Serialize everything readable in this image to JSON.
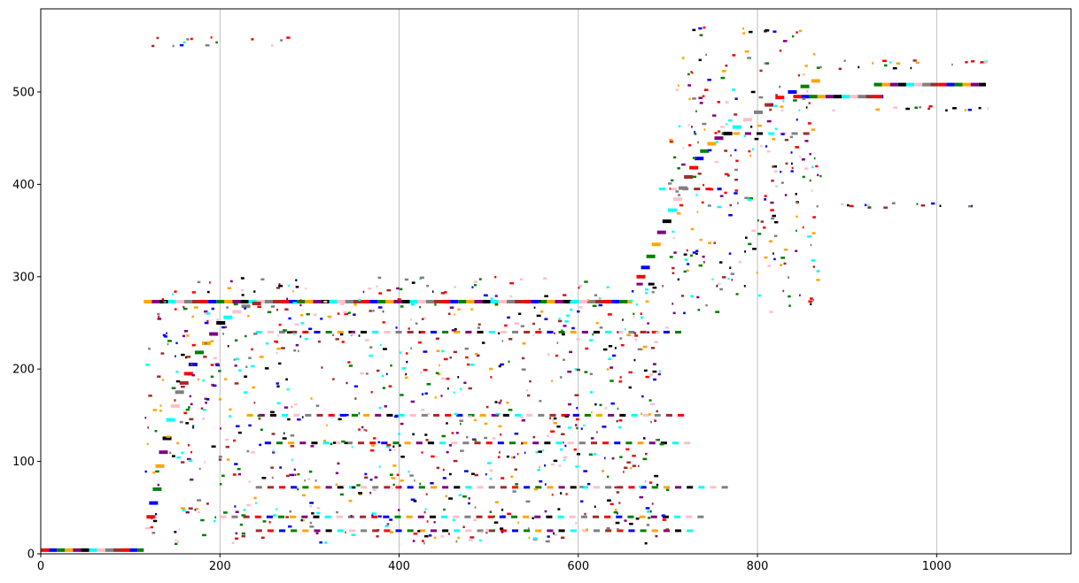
{
  "chart_data": {
    "type": "scatter",
    "title": "",
    "xlabel": "",
    "ylabel": "",
    "xlim": [
      0,
      1150
    ],
    "ylim": [
      0,
      590
    ],
    "x_ticks": [
      0,
      200,
      400,
      600,
      800,
      1000
    ],
    "x_tick_labels": [
      "0",
      "200",
      "400",
      "600",
      "800",
      "1000"
    ],
    "y_ticks": [
      0,
      100,
      200,
      300,
      400,
      500
    ],
    "y_tick_labels": [
      "0",
      "100",
      "200",
      "300",
      "400",
      "500"
    ],
    "grid": "vertical",
    "legend": "none",
    "palette": [
      "#ff0000",
      "#0000ff",
      "#008000",
      "#ffa500",
      "#800080",
      "#000000",
      "#00ffff",
      "#ffc0cb",
      "#808080",
      "#a52a2a"
    ],
    "segments": [
      {
        "x0": 0,
        "x1": 115,
        "y": 4
      },
      {
        "x0": 115,
        "x1": 660,
        "y": 273
      },
      {
        "x0": 665,
        "x1": 690,
        "y": 292
      },
      {
        "x0": 690,
        "x1": 760,
        "y": 395
      },
      {
        "x0": 760,
        "x1": 860,
        "y": 455
      },
      {
        "x0": 840,
        "x1": 940,
        "y": 495
      },
      {
        "x0": 930,
        "x1": 1055,
        "y": 508
      },
      {
        "x0": 240,
        "x1": 720,
        "y": 240
      },
      {
        "x0": 230,
        "x1": 720,
        "y": 150
      },
      {
        "x0": 250,
        "x1": 730,
        "y": 120
      },
      {
        "x0": 240,
        "x1": 770,
        "y": 72
      },
      {
        "x0": 240,
        "x1": 730,
        "y": 25
      },
      {
        "x0": 200,
        "x1": 740,
        "y": 40
      }
    ],
    "staircase": [
      [
        118,
        40
      ],
      [
        121,
        55
      ],
      [
        125,
        70
      ],
      [
        128,
        95
      ],
      [
        132,
        110
      ],
      [
        136,
        125
      ],
      [
        140,
        145
      ],
      [
        145,
        160
      ],
      [
        150,
        175
      ],
      [
        155,
        185
      ],
      [
        160,
        195
      ],
      [
        165,
        205
      ],
      [
        172,
        218
      ],
      [
        180,
        228
      ],
      [
        188,
        238
      ],
      [
        196,
        250
      ],
      [
        204,
        256
      ],
      [
        214,
        262
      ],
      [
        224,
        268
      ],
      [
        236,
        271
      ],
      [
        665,
        300
      ],
      [
        670,
        310
      ],
      [
        676,
        322
      ],
      [
        682,
        335
      ],
      [
        688,
        348
      ],
      [
        694,
        360
      ],
      [
        700,
        372
      ],
      [
        706,
        384
      ],
      [
        712,
        396
      ],
      [
        718,
        408
      ],
      [
        724,
        418
      ],
      [
        730,
        428
      ],
      [
        736,
        436
      ],
      [
        744,
        444
      ],
      [
        752,
        450
      ],
      [
        762,
        455
      ],
      [
        772,
        462
      ],
      [
        784,
        470
      ],
      [
        796,
        478
      ],
      [
        808,
        486
      ],
      [
        820,
        494
      ],
      [
        834,
        500
      ],
      [
        848,
        506
      ],
      [
        860,
        512
      ]
    ],
    "bands": [
      {
        "x0": 115,
        "x1": 700,
        "y0": 10,
        "y1": 300,
        "n": 900
      },
      {
        "x0": 700,
        "x1": 870,
        "y0": 260,
        "y1": 545,
        "n": 260
      },
      {
        "x0": 120,
        "x1": 280,
        "y0": 550,
        "y1": 560,
        "n": 14
      },
      {
        "x0": 720,
        "x1": 860,
        "y0": 555,
        "y1": 570,
        "n": 14
      },
      {
        "x0": 860,
        "x1": 1060,
        "y0": 375,
        "y1": 380,
        "n": 16
      },
      {
        "x0": 880,
        "x1": 1060,
        "y0": 480,
        "y1": 485,
        "n": 14
      },
      {
        "x0": 880,
        "x1": 1060,
        "y0": 525,
        "y1": 535,
        "n": 18
      }
    ]
  }
}
